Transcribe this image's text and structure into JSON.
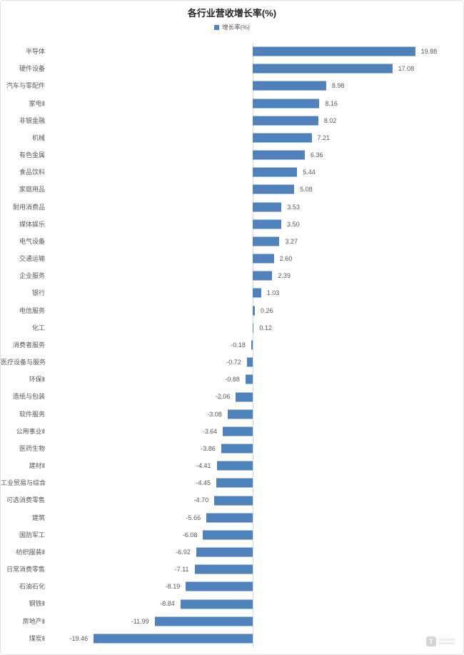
{
  "chart_data": {
    "type": "bar",
    "orientation": "horizontal",
    "title": "各行业营收增长率(%)",
    "legend": [
      "增长率(%)"
    ],
    "legend_position": "top-center",
    "series_name": "增长率(%)",
    "bar_color": "#4f81bd",
    "grid": false,
    "value_axis_visible": false,
    "xlim": [
      -20,
      21
    ],
    "value_label_format": "two-decimals",
    "categories": [
      "半导体",
      "硬件设备",
      "汽车与零配件",
      "家电Ⅱ",
      "非银金融",
      "机械",
      "有色金属",
      "食品饮料",
      "家庭用品",
      "耐用消费品",
      "媒体娱乐",
      "电气设备",
      "交通运输",
      "企业服务",
      "银行",
      "电信服务",
      "化工",
      "消费者服务",
      "医疗设备与服务",
      "环保Ⅱ",
      "造纸与包装",
      "软件服务",
      "公用事业Ⅱ",
      "医药生物",
      "建材Ⅱ",
      "工业贸易与综合",
      "可选消费零售",
      "建筑",
      "国防军工",
      "纺织服装Ⅱ",
      "日常消费零售",
      "石油石化",
      "钢铁Ⅱ",
      "房地产Ⅱ",
      "煤炭Ⅱ"
    ],
    "values": [
      19.88,
      17.08,
      8.98,
      8.16,
      8.02,
      7.21,
      6.36,
      5.44,
      5.08,
      3.53,
      3.5,
      3.27,
      2.6,
      2.39,
      1.03,
      0.26,
      0.12,
      -0.18,
      -0.72,
      -0.88,
      -2.06,
      -3.08,
      -3.64,
      -3.86,
      -4.41,
      -4.45,
      -4.7,
      -5.66,
      -6.08,
      -6.92,
      -7.11,
      -8.19,
      -8.84,
      -11.99,
      -19.46
    ]
  },
  "watermark": {
    "logo_glyph": "T"
  }
}
